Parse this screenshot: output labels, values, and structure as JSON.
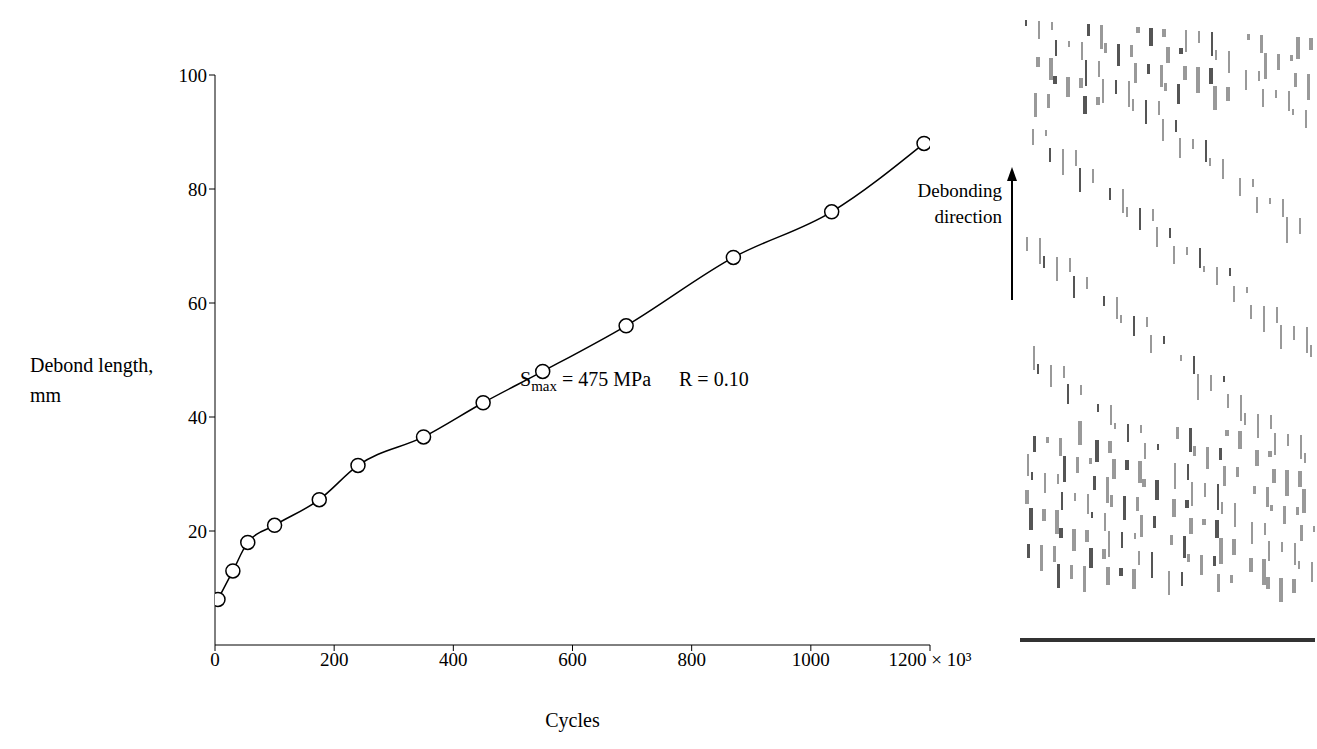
{
  "chart_data": {
    "type": "line",
    "x_label": "Cycles",
    "y_label": "Debond length, mm",
    "x": [
      5,
      30,
      55,
      100,
      175,
      240,
      350,
      450,
      550,
      690,
      870,
      1035,
      1190
    ],
    "series": [
      {
        "name": "Debond length",
        "color": "#000000",
        "marker": "open circle",
        "line_style": "solid",
        "values": [
          8,
          13,
          18,
          21,
          25.5,
          31.5,
          36.5,
          42.5,
          48,
          56,
          68,
          76,
          88
        ]
      }
    ],
    "xlim": [
      0,
      1200
    ],
    "xticks": [
      0,
      200,
      400,
      600,
      800,
      1000,
      {
        "value": 1200,
        "label": "1200 × 10³"
      }
    ],
    "ylim": [
      0,
      100
    ],
    "yticks": [
      20,
      40,
      60,
      80,
      100
    ],
    "grid": false,
    "annotations": [
      {
        "symbol": "S",
        "subscript": "max",
        "text": "= 475 MPa"
      },
      {
        "text": "R = 0.10"
      }
    ],
    "arrow_label": "Debonding direction"
  }
}
